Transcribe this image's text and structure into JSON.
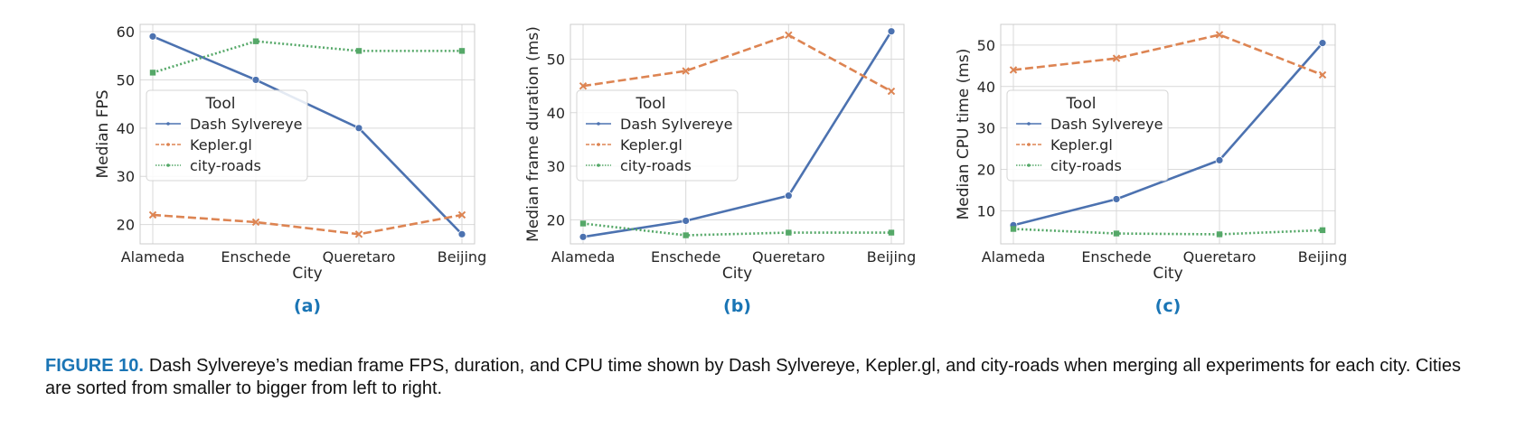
{
  "figure": {
    "caption_label": "FIGURE 10.",
    "caption_text": "Dash Sylvereye’s median frame FPS, duration, and CPU time shown by Dash Sylvereye, Kepler.gl, and city-roads when merging all experiments for each city. Cities are sorted from smaller to bigger from left to right."
  },
  "colors": {
    "dash": "#4c72b0",
    "kepler": "#dd8452",
    "cityroads": "#55a868",
    "grid": "#d9d9d9",
    "panel_label": "#1a75b5"
  },
  "chart_data": [
    {
      "type": "line",
      "panel_label": "(a)",
      "xlabel": "City",
      "ylabel": "Median FPS",
      "categories": [
        "Alameda",
        "Enschede",
        "Queretaro",
        "Beijing"
      ],
      "ylim": [
        16,
        61.5
      ],
      "yticks": [
        20,
        30,
        40,
        50,
        60
      ],
      "grid": true,
      "legend_title": "Tool",
      "legend_position": "center-left",
      "series": [
        {
          "name": "Dash Sylvereye",
          "color_key": "dash",
          "marker": "circle",
          "dash": "solid",
          "values": [
            59,
            50,
            40,
            18
          ]
        },
        {
          "name": "Kepler.gl",
          "color_key": "kepler",
          "marker": "x",
          "dash": "dashed",
          "values": [
            22,
            20.5,
            18,
            22
          ]
        },
        {
          "name": "city-roads",
          "color_key": "cityroads",
          "marker": "square",
          "dash": "dotted",
          "values": [
            51.5,
            58,
            56,
            56
          ]
        }
      ]
    },
    {
      "type": "line",
      "panel_label": "(b)",
      "xlabel": "City",
      "ylabel": "Median frame duration (ms)",
      "categories": [
        "Alameda",
        "Enschede",
        "Queretaro",
        "Beijing"
      ],
      "ylim": [
        15.5,
        56.5
      ],
      "yticks": [
        20,
        30,
        40,
        50
      ],
      "grid": true,
      "legend_title": "Tool",
      "legend_position": "center-left",
      "series": [
        {
          "name": "Dash Sylvereye",
          "color_key": "dash",
          "marker": "circle",
          "dash": "solid",
          "values": [
            16.8,
            19.8,
            24.5,
            55.2
          ]
        },
        {
          "name": "Kepler.gl",
          "color_key": "kepler",
          "marker": "x",
          "dash": "dashed",
          "values": [
            45,
            47.8,
            54.5,
            44
          ]
        },
        {
          "name": "city-roads",
          "color_key": "cityroads",
          "marker": "square",
          "dash": "dotted",
          "values": [
            19.3,
            17.1,
            17.6,
            17.6
          ]
        }
      ]
    },
    {
      "type": "line",
      "panel_label": "(c)",
      "xlabel": "City",
      "ylabel": "Median CPU time (ms)",
      "categories": [
        "Alameda",
        "Enschede",
        "Queretaro",
        "Beijing"
      ],
      "ylim": [
        2,
        55
      ],
      "yticks": [
        10,
        20,
        30,
        40,
        50
      ],
      "grid": true,
      "legend_title": "Tool",
      "legend_position": "center-left",
      "series": [
        {
          "name": "Dash Sylvereye",
          "color_key": "dash",
          "marker": "circle",
          "dash": "solid",
          "values": [
            6.5,
            12.8,
            22.2,
            50.5
          ]
        },
        {
          "name": "Kepler.gl",
          "color_key": "kepler",
          "marker": "x",
          "dash": "dashed",
          "values": [
            44,
            46.8,
            52.5,
            42.8
          ]
        },
        {
          "name": "city-roads",
          "color_key": "cityroads",
          "marker": "square",
          "dash": "dotted",
          "values": [
            5.6,
            4.5,
            4.3,
            5.3
          ]
        }
      ]
    }
  ]
}
